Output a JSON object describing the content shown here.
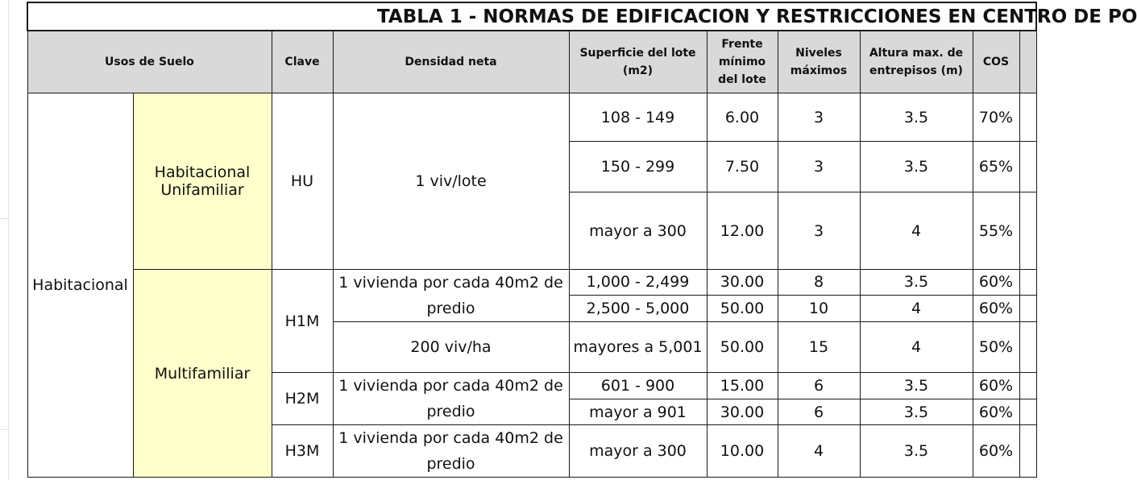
{
  "title": "TABLA 1 - NORMAS DE EDIFICACION Y RESTRICCIONES EN CENTRO DE PO",
  "headers": {
    "usos": "Usos de Suelo",
    "clave": "Clave",
    "densidad": "Densidad neta",
    "superficie": "Superficie del lote (m2)",
    "frente": "Frente mínimo del lote",
    "niveles": "Niveles máximos",
    "altura": "Altura max. de entrepisos (m)",
    "cos": "COS"
  },
  "groups": {
    "habitacional": "Habitacional",
    "unifamiliar": "Habitacional Unifamiliar",
    "multifamiliar": "Multifamiliar"
  },
  "claves": {
    "hu": "HU",
    "h1m": "H1M",
    "h2m": "H2M",
    "h3m": "H3M"
  },
  "densidades": {
    "hu": "1 viv/lote",
    "h1m_a": "1 vivienda por cada 40m2 de predio",
    "h1m_b": "200 viv/ha",
    "h2m": "1 vivienda por cada 40m2 de predio",
    "h3m": "1 vivienda por cada 40m2 de predio"
  },
  "rows": [
    {
      "superficie": "108 - 149",
      "frente": "6.00",
      "niveles": "3",
      "altura": "3.5",
      "cos": "70%"
    },
    {
      "superficie": "150 - 299",
      "frente": "7.50",
      "niveles": "3",
      "altura": "3.5",
      "cos": "65%"
    },
    {
      "superficie": "mayor a 300",
      "frente": "12.00",
      "niveles": "3",
      "altura": "4",
      "cos": "55%"
    },
    {
      "superficie": "1,000 - 2,499",
      "frente": "30.00",
      "niveles": "8",
      "altura": "3.5",
      "cos": "60%"
    },
    {
      "superficie": "2,500 - 5,000",
      "frente": "50.00",
      "niveles": "10",
      "altura": "4",
      "cos": "60%"
    },
    {
      "superficie": "mayores a 5,001",
      "frente": "50.00",
      "niveles": "15",
      "altura": "4",
      "cos": "50%"
    },
    {
      "superficie": "601 - 900",
      "frente": "15.00",
      "niveles": "6",
      "altura": "3.5",
      "cos": "60%"
    },
    {
      "superficie": "mayor a 901",
      "frente": "30.00",
      "niveles": "6",
      "altura": "3.5",
      "cos": "60%"
    },
    {
      "superficie": "mayor a 300",
      "frente": "10.00",
      "niveles": "4",
      "altura": "3.5",
      "cos": "60%"
    }
  ]
}
